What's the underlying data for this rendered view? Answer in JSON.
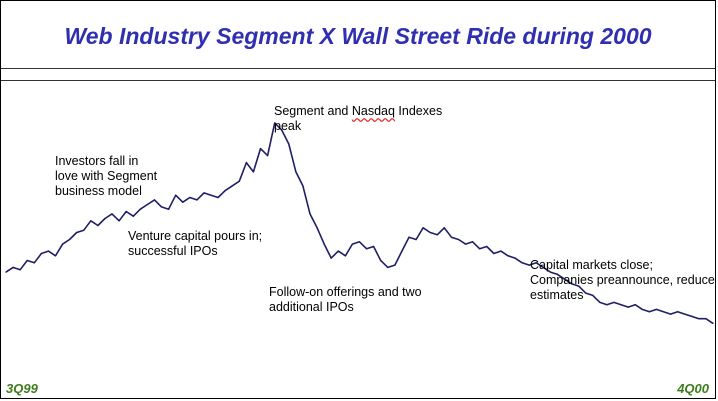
{
  "chart_data": {
    "type": "line",
    "title": "Web Industry Segment X Wall Street Ride during 2000",
    "x_start_label": "3Q99",
    "x_end_label": "4Q00",
    "grid": false,
    "legend": "none",
    "series_color": "#1f1f66",
    "title_color": "#2f2fb0",
    "axis_label_color": "#3e7c1e",
    "ylim": [
      0,
      100
    ],
    "x": [
      0,
      1,
      2,
      3,
      4,
      5,
      6,
      7,
      8,
      9,
      10,
      11,
      12,
      13,
      14,
      15,
      16,
      17,
      18,
      19,
      20,
      21,
      22,
      23,
      24,
      25,
      26,
      27,
      28,
      29,
      30,
      31,
      32,
      33,
      34,
      35,
      36,
      37,
      38,
      39,
      40,
      41,
      42,
      43,
      44,
      45,
      46,
      47,
      48,
      49,
      50,
      51,
      52,
      53,
      54,
      55,
      56,
      57,
      58,
      59,
      60,
      61,
      62,
      63,
      64,
      65,
      66,
      67,
      68,
      69,
      70,
      71,
      72,
      73,
      74,
      75,
      76,
      77,
      78,
      79,
      80,
      81,
      82,
      83,
      84,
      85,
      86,
      87,
      88,
      89,
      90,
      91,
      92,
      93,
      94,
      95,
      96,
      97,
      98,
      99,
      100
    ],
    "values": [
      33,
      35,
      34,
      38,
      37,
      41,
      42,
      40,
      45,
      47,
      50,
      51,
      55,
      53,
      56,
      58,
      55,
      59,
      57,
      60,
      62,
      64,
      61,
      60,
      66,
      63,
      65,
      64,
      67,
      66,
      65,
      68,
      70,
      72,
      80,
      76,
      86,
      83,
      97,
      94,
      88,
      76,
      70,
      58,
      52,
      45,
      39,
      42,
      40,
      45,
      46,
      43,
      44,
      38,
      35,
      36,
      42,
      48,
      47,
      52,
      50,
      49,
      52,
      48,
      47,
      45,
      46,
      43,
      44,
      41,
      42,
      40,
      39,
      37,
      36,
      37,
      35,
      33,
      32,
      30,
      28,
      27,
      24,
      23,
      20,
      19,
      20,
      19,
      18,
      19,
      17,
      16,
      17,
      16,
      15,
      16,
      15,
      14,
      13,
      13,
      11
    ],
    "annotations": [
      "Investors fall in love with Segment business model",
      "Venture capital pours in; successful IPOs",
      "Segment and Nasdaq Indexes peak",
      "Follow-on offerings and two additional IPOs",
      "Capital markets close; Companies preannounce, reduce estimates"
    ]
  },
  "annotations": {
    "investors": [
      "Investors fall in",
      "love with Segment",
      "business model"
    ],
    "venture": [
      "Venture capital pours in;",
      "successful IPOs"
    ],
    "peak_pre": "Segment and ",
    "peak_word": "Nasdaq",
    "peak_post": " Indexes",
    "peak_line2": "peak",
    "followon": [
      "Follow-on offerings and two",
      "additional IPOs"
    ],
    "capital": [
      "Capital markets close;",
      "Companies preannounce, reduce",
      "estimates"
    ]
  }
}
